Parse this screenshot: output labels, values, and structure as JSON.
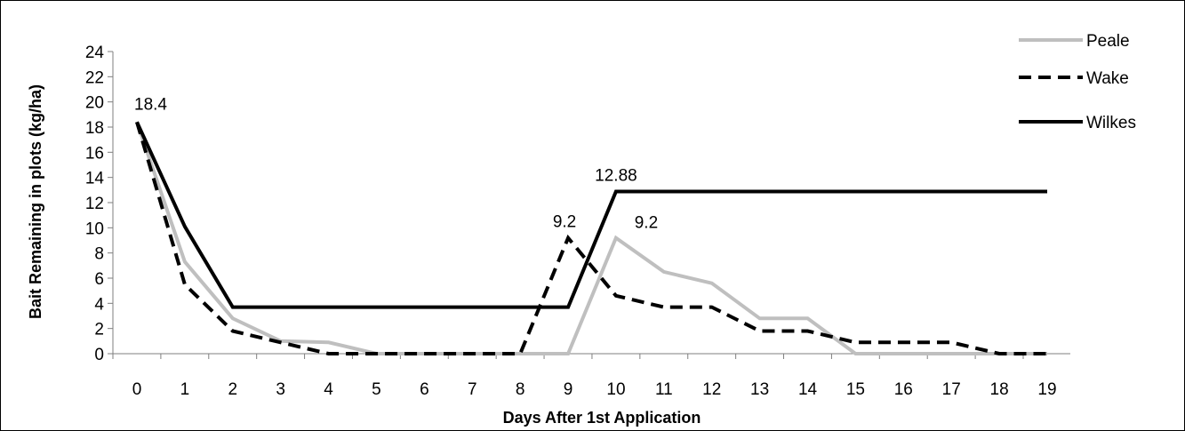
{
  "chart_data": {
    "type": "line",
    "title": "",
    "xlabel": "Days After 1st Application",
    "ylabel": "Bait Remaining in plots (kg/ha)",
    "x": [
      0,
      1,
      2,
      3,
      4,
      5,
      6,
      7,
      8,
      9,
      10,
      11,
      12,
      13,
      14,
      15,
      16,
      17,
      18,
      19
    ],
    "ylim": [
      0,
      24
    ],
    "yticks": [
      0,
      2,
      4,
      6,
      8,
      10,
      12,
      14,
      16,
      18,
      20,
      22,
      24
    ],
    "grid": false,
    "legend": "top-right",
    "series": [
      {
        "name": "Peale",
        "color": "#bfbfbf",
        "style": "solid",
        "values": [
          18.4,
          7.3,
          2.8,
          1.0,
          0.9,
          0.0,
          0.0,
          0.0,
          0.0,
          0.0,
          9.2,
          6.5,
          5.6,
          2.8,
          2.8,
          0.0,
          0.0,
          0.0,
          0.0,
          0.0
        ]
      },
      {
        "name": "Wake",
        "color": "#000000",
        "style": "dashed",
        "values": [
          18.4,
          5.5,
          1.8,
          0.9,
          0.0,
          0.0,
          0.0,
          0.0,
          0.0,
          9.2,
          4.6,
          3.7,
          3.7,
          1.8,
          1.8,
          0.9,
          0.9,
          0.9,
          0.0,
          0.0
        ]
      },
      {
        "name": "Wilkes",
        "color": "#000000",
        "style": "solid",
        "values": [
          18.4,
          10.1,
          3.7,
          3.7,
          3.7,
          3.7,
          3.7,
          3.7,
          3.7,
          3.7,
          12.88,
          12.88,
          12.88,
          12.88,
          12.88,
          12.88,
          12.88,
          12.88,
          12.88,
          12.88
        ]
      }
    ],
    "annotations": [
      {
        "text": "18.4",
        "x": 0,
        "y": 18.4
      },
      {
        "text": "9.2",
        "x": 9,
        "y": 9.2
      },
      {
        "text": "12.88",
        "x": 10,
        "y": 12.88
      },
      {
        "text": "9.2",
        "x": 10,
        "y": 9.2
      }
    ]
  }
}
